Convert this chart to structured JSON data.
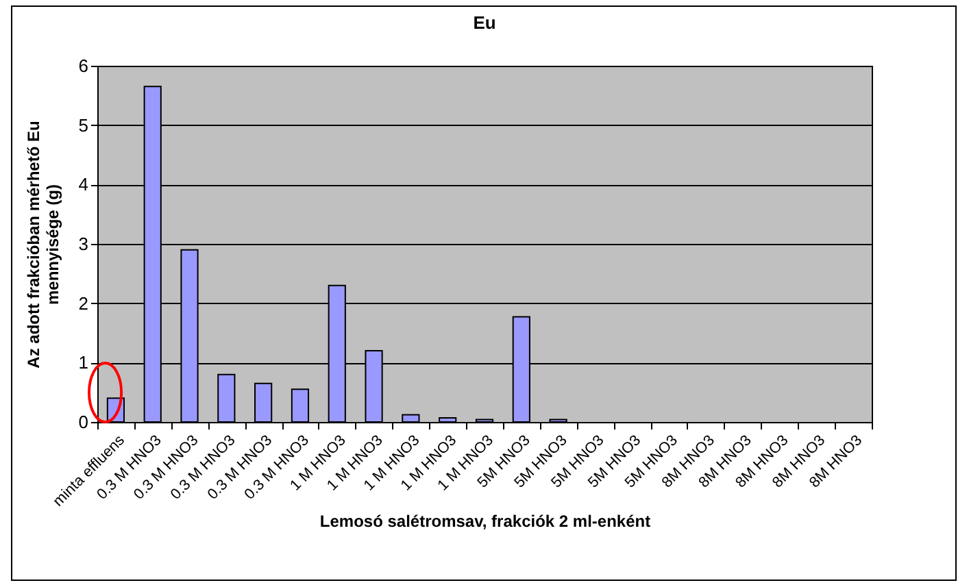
{
  "chart_data": {
    "type": "bar",
    "title": "Eu",
    "xlabel": "Lemosó salétromsav, frakciók 2 ml-enként",
    "ylabel": "Az adott frakcióban mérhető Eu\nmennyisége (g)",
    "categories": [
      "minta effluens",
      "0.3 M HNO3",
      "0.3 M HNO3",
      "0.3 M HNO3",
      "0.3 M HNO3",
      "0.3 M HNO3",
      "1 M HNO3",
      "1 M HNO3",
      "1 M HNO3",
      "1 M HNO3",
      "1 M HNO3",
      "5M HNO3",
      "5M HNO3",
      "5M HNO3",
      "5M HNO3",
      "5M HNO3",
      "8M HNO3",
      "8M HNO3",
      "8M HNO3",
      "8M HNO3",
      "8M HNO3"
    ],
    "values": [
      0.4,
      5.65,
      2.9,
      0.8,
      0.65,
      0.55,
      2.3,
      1.2,
      0.12,
      0.07,
      0.04,
      1.77,
      0.04,
      0,
      0,
      0,
      0,
      0,
      0,
      0,
      0
    ],
    "color": "#9999ff",
    "ylim": [
      0,
      6
    ],
    "yticks": [
      0,
      1,
      2,
      3,
      4,
      5,
      6
    ],
    "grid": "y"
  }
}
